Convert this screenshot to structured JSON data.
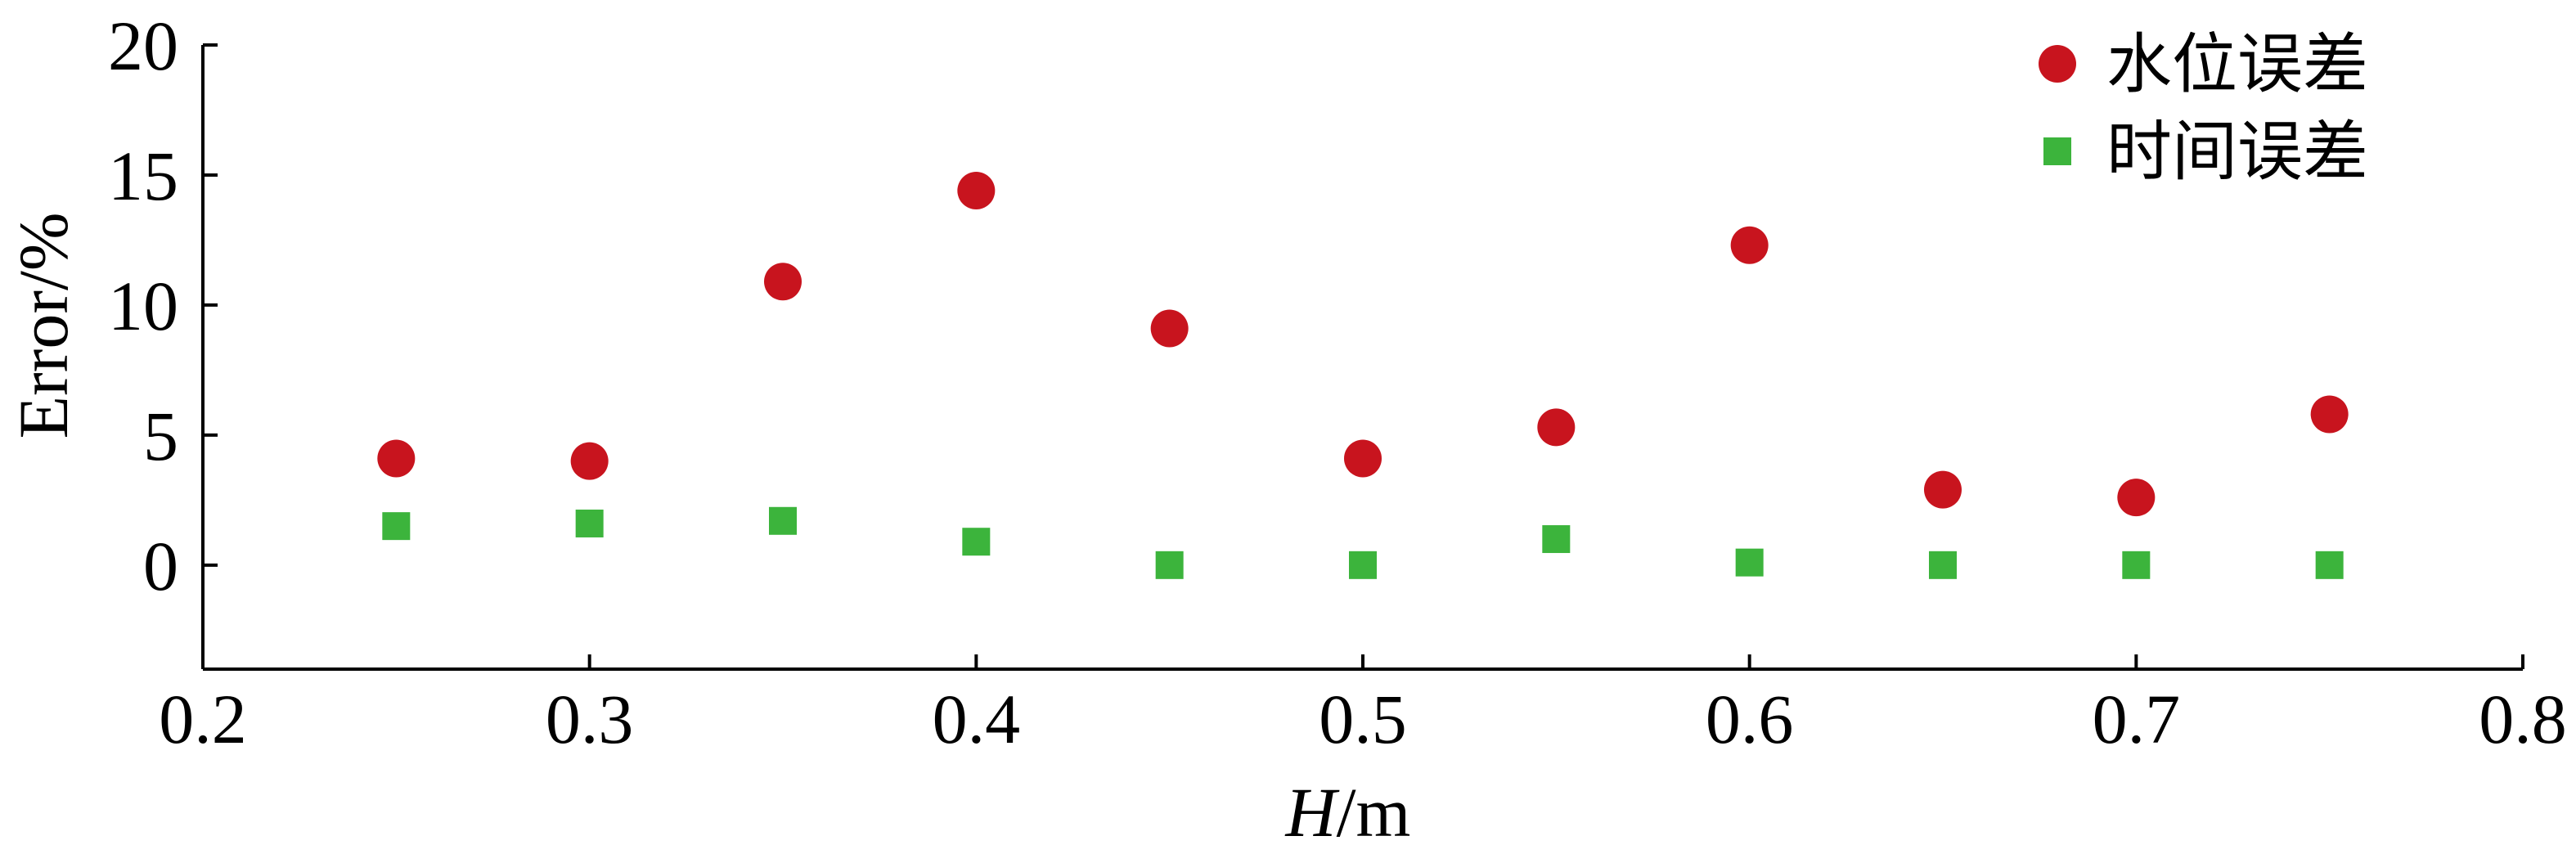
{
  "chart_data": {
    "type": "scatter",
    "title": "",
    "xlabel_italic": "H",
    "xlabel_rest": "/m",
    "ylabel": "Error/%",
    "xlim": [
      0.2,
      0.8
    ],
    "ylim": [
      -4,
      20
    ],
    "xticks": [
      0.2,
      0.3,
      0.4,
      0.5,
      0.6,
      0.7,
      0.8
    ],
    "xtick_labels": [
      "0.2",
      "0.3",
      "0.4",
      "0.5",
      "0.6",
      "0.7",
      "0.8"
    ],
    "yticks": [
      0,
      5,
      10,
      15,
      20
    ],
    "ytick_labels": [
      "0",
      "5",
      "10",
      "15",
      "20"
    ],
    "grid": false,
    "legend_position": "top-right",
    "series": [
      {
        "name": "水位误差",
        "marker": "circle",
        "color": "#c8141e",
        "x": [
          0.25,
          0.3,
          0.35,
          0.4,
          0.45,
          0.5,
          0.55,
          0.6,
          0.65,
          0.7,
          0.75
        ],
        "y": [
          4.1,
          4.0,
          10.9,
          14.4,
          9.1,
          4.1,
          5.3,
          12.3,
          2.9,
          2.6,
          5.8
        ]
      },
      {
        "name": "时间误差",
        "marker": "square",
        "color": "#3cb43c",
        "x": [
          0.25,
          0.3,
          0.35,
          0.4,
          0.45,
          0.5,
          0.55,
          0.6,
          0.65,
          0.7,
          0.75
        ],
        "y": [
          1.5,
          1.6,
          1.7,
          0.9,
          0.0,
          0.0,
          1.0,
          0.1,
          0.0,
          0.0,
          0.0
        ]
      }
    ]
  }
}
